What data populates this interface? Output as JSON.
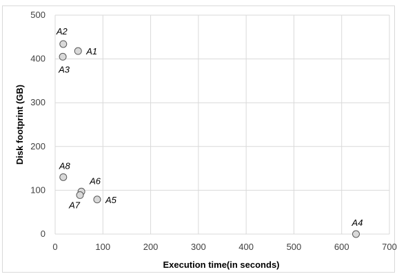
{
  "chart_data": {
    "type": "scatter",
    "title": "",
    "xlabel": "Execution time(in seconds)",
    "ylabel": "Disk footprint (GB)",
    "xlim": [
      0,
      700
    ],
    "ylim": [
      0,
      500
    ],
    "x_ticks": [
      "0",
      "100",
      "200",
      "300",
      "400",
      "500",
      "600",
      "700"
    ],
    "y_ticks": [
      "0",
      "100",
      "200",
      "300",
      "400",
      "500"
    ],
    "grid": true,
    "legend": "none",
    "marker_fill": "#d9d9d9",
    "marker_stroke": "#595959",
    "points": [
      {
        "label": "A1",
        "x": 48,
        "y": 418,
        "label_pos": "right"
      },
      {
        "label": "A2",
        "x": 17,
        "y": 434,
        "label_pos": "above-left"
      },
      {
        "label": "A3",
        "x": 16,
        "y": 405,
        "label_pos": "below"
      },
      {
        "label": "A4",
        "x": 630,
        "y": 0,
        "label_pos": "above"
      },
      {
        "label": "A5",
        "x": 88,
        "y": 79,
        "label_pos": "right"
      },
      {
        "label": "A6",
        "x": 55,
        "y": 97,
        "label_pos": "above-right"
      },
      {
        "label": "A7",
        "x": 52,
        "y": 89,
        "label_pos": "below-left"
      },
      {
        "label": "A8",
        "x": 17,
        "y": 130,
        "label_pos": "above"
      }
    ]
  }
}
